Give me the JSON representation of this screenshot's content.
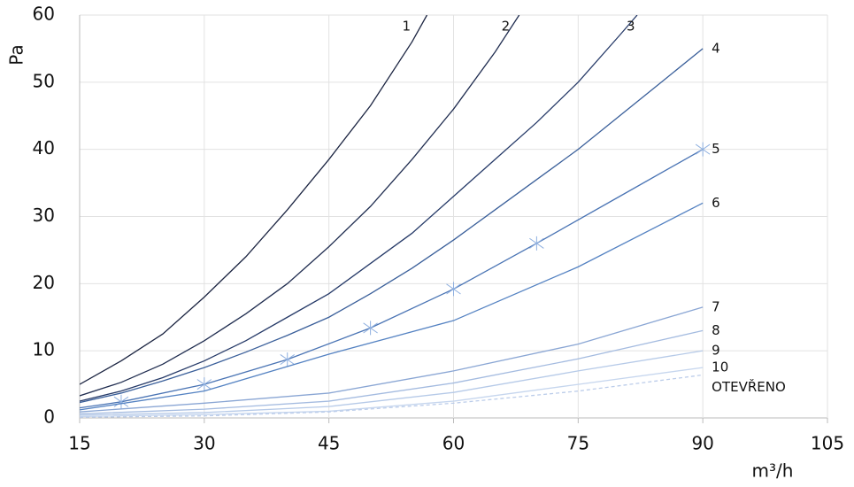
{
  "chart_data": {
    "type": "line",
    "y_label": "Pa",
    "x_label": "m³/h",
    "xlim": [
      15,
      105
    ],
    "xticks": [
      15,
      30,
      45,
      60,
      75,
      90,
      105
    ],
    "ylim": [
      0,
      60
    ],
    "yticks": [
      0,
      10,
      20,
      30,
      40,
      50,
      60
    ],
    "grid": true,
    "series": [
      {
        "name": "1",
        "color": "#1b2441",
        "x": [
          15,
          20,
          25,
          30,
          35,
          40,
          45,
          50,
          55,
          56.8
        ],
        "values": [
          5,
          8.5,
          12.5,
          18,
          24,
          31,
          38.5,
          46.5,
          56,
          60
        ]
      },
      {
        "name": "2",
        "color": "#202d50",
        "x": [
          15,
          20,
          25,
          30,
          35,
          40,
          45,
          50,
          55,
          60,
          65,
          67.9
        ],
        "values": [
          3.3,
          5.3,
          8,
          11.5,
          15.5,
          20,
          25.5,
          31.5,
          38.5,
          46,
          54.5,
          60
        ]
      },
      {
        "name": "3",
        "color": "#263a68",
        "x": [
          15,
          20,
          25,
          30,
          35,
          40,
          45,
          50,
          55,
          60,
          65,
          70,
          75,
          80,
          82.1
        ],
        "values": [
          2.5,
          4,
          6,
          8.5,
          11.5,
          15,
          18.5,
          23,
          27.5,
          33,
          38.5,
          44,
          50,
          57,
          60
        ]
      },
      {
        "name": "4",
        "color": "#3a5f9a",
        "x": [
          15,
          20,
          25,
          30,
          35,
          40,
          45,
          50,
          55,
          60,
          65,
          70,
          75,
          80,
          85,
          90
        ],
        "values": [
          2.3,
          3.7,
          5.5,
          7.5,
          9.8,
          12.3,
          15,
          18.5,
          22.3,
          26.5,
          31,
          35.5,
          40,
          45,
          50,
          55
        ]
      },
      {
        "name": "5",
        "color": "#4a74b4",
        "markers": true,
        "x": [
          15,
          20,
          30,
          40,
          50,
          60,
          70,
          80,
          90
        ],
        "values": [
          1.5,
          2.4,
          5,
          8.7,
          13.4,
          19.2,
          26,
          33,
          40
        ]
      },
      {
        "name": "6",
        "color": "#5482c2",
        "x": [
          15,
          30,
          45,
          60,
          75,
          90
        ],
        "values": [
          1.2,
          4,
          9.5,
          14.5,
          22.5,
          32
        ]
      },
      {
        "name": "7",
        "color": "#8aa6d4",
        "x": [
          15,
          30,
          45,
          60,
          75,
          90
        ],
        "values": [
          0.9,
          2.2,
          3.7,
          7,
          11,
          16.5
        ]
      },
      {
        "name": "8",
        "color": "#a4bbe0",
        "x": [
          15,
          30,
          45,
          60,
          75,
          90
        ],
        "values": [
          0.6,
          1.3,
          2.5,
          5.2,
          8.8,
          13
        ]
      },
      {
        "name": "9",
        "color": "#b6cae8",
        "x": [
          15,
          30,
          45,
          60,
          75,
          90
        ],
        "values": [
          0.4,
          0.8,
          1.7,
          3.8,
          7,
          10
        ]
      },
      {
        "name": "10",
        "color": "#c6d6ee",
        "x": [
          15,
          30,
          45,
          60,
          75,
          90
        ],
        "values": [
          0.2,
          0.5,
          1,
          2.5,
          5,
          7.5
        ]
      },
      {
        "name": "OTEVŘENO",
        "color": "#bccdea",
        "dashed": true,
        "x": [
          15,
          30,
          45,
          60,
          75,
          90
        ],
        "values": [
          0.1,
          0.3,
          0.9,
          2.2,
          4,
          6.4
        ]
      }
    ]
  }
}
